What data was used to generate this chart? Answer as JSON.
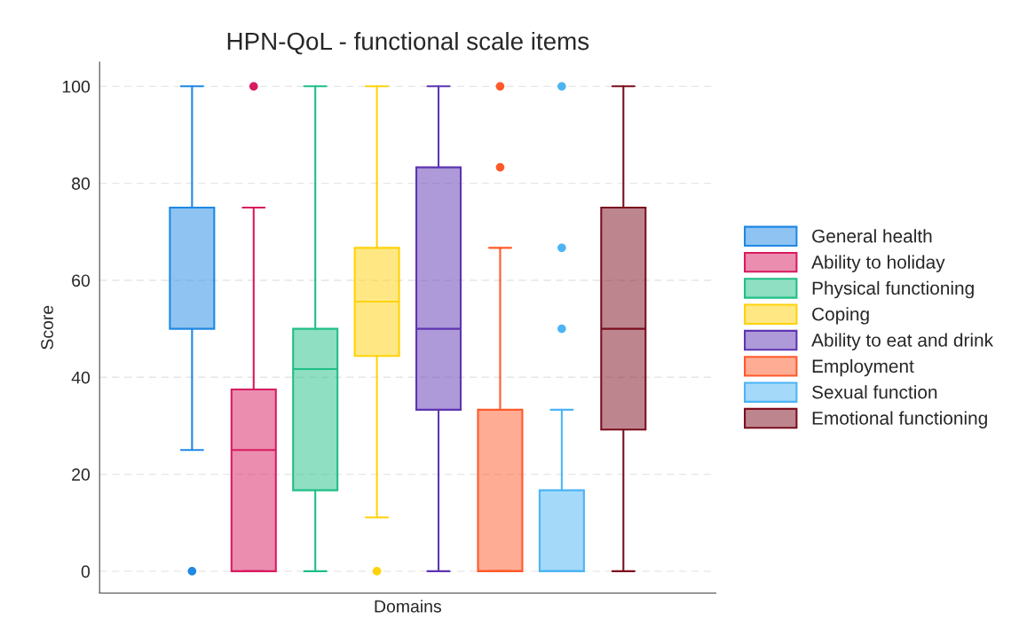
{
  "chart_data": {
    "type": "box",
    "title": "HPN-QoL - functional scale items",
    "xlabel": "Domains",
    "ylabel": "Score",
    "categories": [
      null
    ],
    "ylim": [
      -4.5,
      105
    ],
    "yticks": [
      0,
      20,
      40,
      60,
      80,
      100
    ],
    "grid": "y",
    "legend": "right",
    "series": [
      {
        "name": "General health",
        "color": "#1e88e5",
        "boxes": [
          {
            "low": 25,
            "q1": 50,
            "median": 75,
            "q3": 75,
            "high": 100,
            "outliers": [
              0
            ]
          }
        ]
      },
      {
        "name": "Ability to holiday",
        "color": "#d81b60",
        "boxes": [
          {
            "low": 0,
            "q1": 0,
            "median": 25,
            "q3": 37.5,
            "high": 75,
            "outliers": [
              100
            ]
          }
        ]
      },
      {
        "name": "Physical functioning",
        "color": "#1fbf86",
        "boxes": [
          {
            "low": 0,
            "q1": 16.7,
            "median": 41.7,
            "q3": 50,
            "high": 100
          }
        ]
      },
      {
        "name": "Coping",
        "color": "#ffd20a",
        "boxes": [
          {
            "low": 11.1,
            "q1": 44.4,
            "median": 55.6,
            "q3": 66.7,
            "high": 100,
            "outliers": [
              0
            ]
          }
        ]
      },
      {
        "name": "Ability to eat and drink",
        "color": "#5e35b1",
        "boxes": [
          {
            "low": 0,
            "q1": 33.3,
            "median": 50,
            "q3": 83.3,
            "high": 100
          }
        ]
      },
      {
        "name": "Employment",
        "color": "#ff5a2a",
        "boxes": [
          {
            "low": 0,
            "q1": 0,
            "median": 0,
            "q3": 33.3,
            "high": 66.7,
            "outliers": [
              83.3,
              100
            ]
          }
        ]
      },
      {
        "name": "Sexual function",
        "color": "#4cb4f5",
        "boxes": [
          {
            "low": 0,
            "q1": 0,
            "median": 0,
            "q3": 16.7,
            "high": 33.3,
            "outliers": [
              50,
              66.7,
              100
            ]
          }
        ]
      },
      {
        "name": "Emotional functioning",
        "color": "#7b0e1e",
        "boxes": [
          {
            "low": 0,
            "q1": 29.2,
            "median": 50,
            "q3": 75,
            "high": 100
          }
        ]
      }
    ]
  }
}
